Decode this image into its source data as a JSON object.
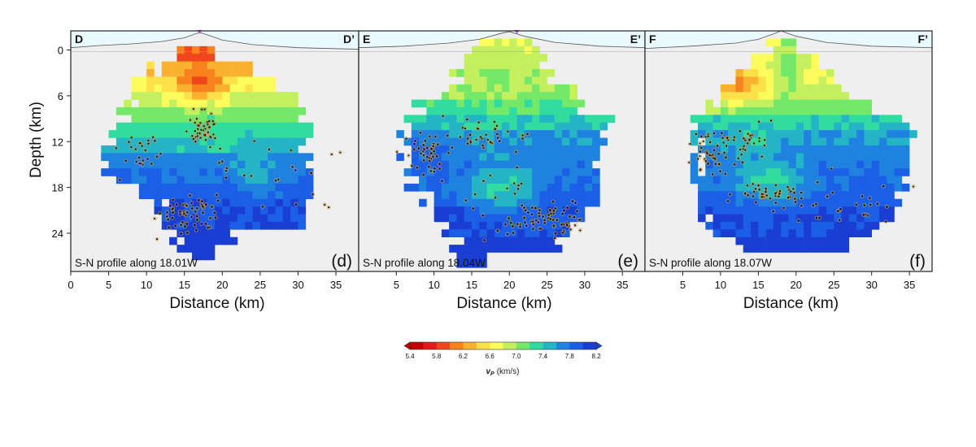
{
  "chart_data": [
    {
      "type": "heatmap",
      "panel_label": "(d)",
      "profile_text": "S-N profile along 18.01W",
      "start_label": "D",
      "end_label": "D’",
      "xlabel": "Distance (km)",
      "ylabel": "Depth (km)",
      "xlim": [
        0,
        38
      ],
      "ylim": [
        -2.5,
        29
      ],
      "x_ticks": [
        "0",
        "5",
        "10",
        "15",
        "20",
        "25",
        "30",
        "35"
      ],
      "y_ticks": [
        "0",
        "6",
        "12",
        "18",
        "24"
      ],
      "station_marker_km": 17,
      "topography": [
        [
          0,
          -0.3
        ],
        [
          4,
          -0.6
        ],
        [
          8,
          -0.8
        ],
        [
          12,
          -1.1
        ],
        [
          15,
          -1.6
        ],
        [
          17,
          -2.3
        ],
        [
          18,
          -2.0
        ],
        [
          20,
          -1.3
        ],
        [
          24,
          -0.7
        ],
        [
          30,
          -0.3
        ],
        [
          38,
          -0.1
        ]
      ],
      "rows": [
        {
          "depth": 0.5,
          "from": 13,
          "to": 19,
          "vp": 6.0
        },
        {
          "depth": 2.5,
          "from": 10,
          "to": 24,
          "vp": 6.4
        },
        {
          "depth": 4.5,
          "from": 7,
          "to": 27,
          "vp": 6.7
        },
        {
          "depth": 6.5,
          "from": 7,
          "to": 30,
          "vp": 6.9
        },
        {
          "depth": 8.5,
          "from": 6,
          "to": 31,
          "vp": 7.1
        },
        {
          "depth": 10.5,
          "from": 5,
          "to": 32,
          "vp": 7.3
        },
        {
          "depth": 12.5,
          "from": 4,
          "to": 31,
          "vp": 7.5
        },
        {
          "depth": 14.5,
          "from": 4,
          "to": 32,
          "vp": 7.7
        },
        {
          "depth": 16.5,
          "from": 4,
          "to": 32,
          "vp": 7.8
        },
        {
          "depth": 18.5,
          "from": 8,
          "to": 32,
          "vp": 7.9
        },
        {
          "depth": 20.5,
          "from": 11,
          "to": 32,
          "vp": 8.0
        },
        {
          "depth": 22.5,
          "from": 12,
          "to": 31,
          "vp": 8.0
        },
        {
          "depth": 24.5,
          "from": 13,
          "to": 22,
          "vp": 8.1
        },
        {
          "depth": 26.5,
          "from": 14,
          "to": 19,
          "vp": 8.1
        }
      ],
      "anomalies": [
        {
          "x": 17,
          "depth": 4.0,
          "rx": 4,
          "rdepth": 2.5,
          "vp": 6.0
        },
        {
          "x": 24,
          "depth": 15.0,
          "rx": 3,
          "rdepth": 4.0,
          "vp": 7.5
        },
        {
          "x": 19,
          "depth": 11.0,
          "rx": 4,
          "rdepth": 2.0,
          "vp": 7.3
        }
      ],
      "clusters": [
        {
          "x": 17.5,
          "depth": 10.5,
          "sx": 1.2,
          "sd": 1.2,
          "n": 45
        },
        {
          "x": 16.0,
          "depth": 21.5,
          "sx": 2.0,
          "sd": 1.3,
          "n": 60
        },
        {
          "x": 9.5,
          "depth": 13.0,
          "sx": 1.3,
          "sd": 1.5,
          "n": 25
        },
        {
          "x": 25.0,
          "depth": 17.0,
          "sx": 6.0,
          "sd": 3.0,
          "n": 25
        }
      ]
    },
    {
      "type": "heatmap",
      "panel_label": "(e)",
      "profile_text": "S-N profile along 18.04W",
      "start_label": "E",
      "end_label": "E’",
      "xlabel": "Distance (km)",
      "ylabel": "",
      "xlim": [
        0,
        38
      ],
      "ylim": [
        -2.5,
        29
      ],
      "x_ticks": [
        "5",
        "10",
        "15",
        "20",
        "25",
        "30",
        "35"
      ],
      "y_ticks": [],
      "station_marker_km": 21,
      "topography": [
        [
          0,
          -0.3
        ],
        [
          6,
          -0.5
        ],
        [
          12,
          -0.9
        ],
        [
          16,
          -1.4
        ],
        [
          19,
          -2.2
        ],
        [
          20,
          -2.4
        ],
        [
          22,
          -1.8
        ],
        [
          26,
          -1.0
        ],
        [
          32,
          -0.5
        ],
        [
          38,
          -0.3
        ]
      ],
      "rows": [
        {
          "depth": -0.5,
          "from": 15,
          "to": 24,
          "vp": 6.8
        },
        {
          "depth": 1.5,
          "from": 14,
          "to": 25,
          "vp": 6.9
        },
        {
          "depth": 3.5,
          "from": 12,
          "to": 26,
          "vp": 7.0
        },
        {
          "depth": 5.5,
          "from": 11,
          "to": 29,
          "vp": 7.0
        },
        {
          "depth": 7.5,
          "from": 7,
          "to": 30,
          "vp": 7.2
        },
        {
          "depth": 9.5,
          "from": 5,
          "to": 34,
          "vp": 7.4
        },
        {
          "depth": 11.5,
          "from": 5,
          "to": 33,
          "vp": 7.6
        },
        {
          "depth": 13.5,
          "from": 5,
          "to": 32,
          "vp": 7.7
        },
        {
          "depth": 15.5,
          "from": 5,
          "to": 32,
          "vp": 7.8
        },
        {
          "depth": 17.5,
          "from": 6,
          "to": 32,
          "vp": 7.8
        },
        {
          "depth": 19.5,
          "from": 8,
          "to": 32,
          "vp": 7.9
        },
        {
          "depth": 21.5,
          "from": 10,
          "to": 30,
          "vp": 8.0
        },
        {
          "depth": 23.5,
          "from": 11,
          "to": 28,
          "vp": 8.0
        },
        {
          "depth": 25.5,
          "from": 12,
          "to": 27,
          "vp": 8.1
        },
        {
          "depth": 27.5,
          "from": 13,
          "to": 17,
          "vp": 8.1
        }
      ],
      "anomalies": [
        {
          "x": 19,
          "depth": 18.0,
          "rx": 4,
          "rdepth": 3.0,
          "vp": 7.3
        },
        {
          "x": 9,
          "depth": 13.5,
          "rx": 3,
          "rdepth": 2.5,
          "vp": 7.9
        }
      ],
      "clusters": [
        {
          "x": 9.0,
          "depth": 13.5,
          "sx": 1.5,
          "sd": 1.3,
          "n": 45
        },
        {
          "x": 24.5,
          "depth": 22.0,
          "sx": 2.5,
          "sd": 1.2,
          "n": 70
        },
        {
          "x": 17.0,
          "depth": 11.0,
          "sx": 2.5,
          "sd": 1.0,
          "n": 35
        },
        {
          "x": 19.0,
          "depth": 18.0,
          "sx": 2.5,
          "sd": 2.5,
          "n": 15
        }
      ]
    },
    {
      "type": "heatmap",
      "panel_label": "(f)",
      "profile_text": "S-N profile along 18.07W",
      "start_label": "F",
      "end_label": "F’",
      "xlabel": "Distance (km)",
      "ylabel": "",
      "xlim": [
        0,
        38
      ],
      "ylim": [
        -2.5,
        29
      ],
      "x_ticks": [
        "5",
        "10",
        "15",
        "20",
        "25",
        "30",
        "35"
      ],
      "y_ticks": [],
      "station_marker_km": null,
      "topography": [
        [
          0,
          -0.2
        ],
        [
          6,
          -0.5
        ],
        [
          12,
          -0.9
        ],
        [
          15,
          -1.4
        ],
        [
          17,
          -2.1
        ],
        [
          18,
          -2.5
        ],
        [
          20,
          -1.8
        ],
        [
          24,
          -1.0
        ],
        [
          30,
          -0.5
        ],
        [
          38,
          -0.3
        ]
      ],
      "rows": [
        {
          "depth": -0.5,
          "from": 16,
          "to": 21,
          "vp": 6.8
        },
        {
          "depth": 1.5,
          "from": 14,
          "to": 23,
          "vp": 6.8
        },
        {
          "depth": 3.5,
          "from": 12,
          "to": 25,
          "vp": 6.8
        },
        {
          "depth": 5.5,
          "from": 10,
          "to": 27,
          "vp": 6.9
        },
        {
          "depth": 7.5,
          "from": 8,
          "to": 30,
          "vp": 7.1
        },
        {
          "depth": 9.5,
          "from": 6,
          "to": 35,
          "vp": 7.4
        },
        {
          "depth": 11.5,
          "from": 6,
          "to": 36,
          "vp": 7.6
        },
        {
          "depth": 13.5,
          "from": 6,
          "to": 35,
          "vp": 7.7
        },
        {
          "depth": 15.5,
          "from": 6,
          "to": 35,
          "vp": 7.8
        },
        {
          "depth": 17.5,
          "from": 6,
          "to": 35,
          "vp": 7.8
        },
        {
          "depth": 19.5,
          "from": 7,
          "to": 34,
          "vp": 7.9
        },
        {
          "depth": 21.5,
          "from": 7,
          "to": 33,
          "vp": 8.0
        },
        {
          "depth": 23.5,
          "from": 8,
          "to": 31,
          "vp": 8.0
        },
        {
          "depth": 25.5,
          "from": 12,
          "to": 27,
          "vp": 8.1
        }
      ],
      "anomalies": [
        {
          "x": 12,
          "depth": 4.5,
          "rx": 4,
          "rdepth": 2.5,
          "vp": 6.2
        },
        {
          "x": 19,
          "depth": 2.5,
          "rx": 1.5,
          "rdepth": 5.0,
          "vp": 7.1
        },
        {
          "x": 17,
          "depth": 17.0,
          "rx": 4,
          "rdepth": 3.0,
          "vp": 7.3
        },
        {
          "x": 14,
          "depth": 11.5,
          "rx": 3,
          "rdepth": 2.0,
          "vp": 7.4
        }
      ],
      "clusters": [
        {
          "x": 9.0,
          "depth": 13.5,
          "sx": 1.5,
          "sd": 1.5,
          "n": 50
        },
        {
          "x": 14.0,
          "depth": 11.5,
          "sx": 1.5,
          "sd": 1.0,
          "n": 25
        },
        {
          "x": 17.0,
          "depth": 19.0,
          "sx": 2.5,
          "sd": 0.8,
          "n": 45
        },
        {
          "x": 27.0,
          "depth": 20.0,
          "sx": 4.0,
          "sd": 2.0,
          "n": 30
        }
      ]
    }
  ],
  "colorbar": {
    "label_symbol": "v",
    "label_subscript": "P",
    "label_unit": "(km/s)",
    "ticks": [
      "5.4",
      "5.8",
      "6.2",
      "6.6",
      "7.0",
      "7.4",
      "7.8",
      "8.2"
    ],
    "min": 5.4,
    "max": 8.2,
    "colors": [
      "#c40000",
      "#e31a1c",
      "#f0461e",
      "#f7821e",
      "#fbb130",
      "#fde04a",
      "#fcfc5a",
      "#c4f060",
      "#74e868",
      "#30dca0",
      "#23b4c6",
      "#1f82df",
      "#1b5fe6",
      "#1a3ed2"
    ]
  },
  "colors": {
    "air": "#e9f9fd",
    "ground": "#efefef",
    "event_dot": "#111111",
    "event_halo": "#d49a3a",
    "station_marker": "#c552d4"
  }
}
